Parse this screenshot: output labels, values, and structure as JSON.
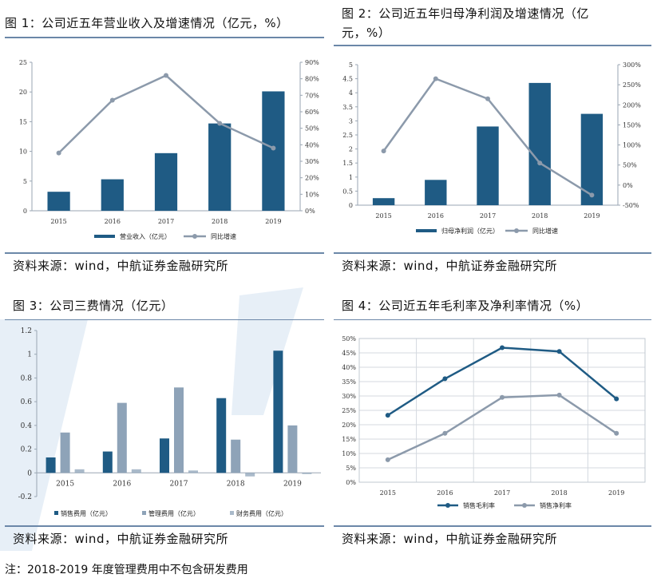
{
  "colors": {
    "bar_dark": "#1f5b84",
    "bar_light": "#8ea3b8",
    "line_grey": "#8c9aab",
    "axis": "#9aa6b3",
    "rule": "#6b87a8"
  },
  "page": {
    "source_text": "资料来源：wind，中航证券金融研究所",
    "note": "注：2018-2019 年度管理费用中不包含研发费用"
  },
  "charts": [
    {
      "title": "图 1：公司近五年营业收入及增速情况（亿元，%）"
    },
    {
      "title_line1": "图 2：公司近五年归母净利润及增速情况（亿",
      "title_line2": "元，%）"
    },
    {
      "title": "图 3：公司三费情况（亿元）"
    },
    {
      "title": "图 4：公司近五年毛利率及净利率情况（%）"
    }
  ],
  "chart_data": [
    {
      "type": "bar",
      "categories": [
        "2015",
        "2016",
        "2017",
        "2018",
        "2019"
      ],
      "series": [
        {
          "name": "营业收入（亿元）",
          "type": "bar",
          "axis": "left",
          "values": [
            3.2,
            5.3,
            9.7,
            14.7,
            20.1
          ]
        },
        {
          "name": "同比增速",
          "type": "line",
          "axis": "right",
          "values": [
            35,
            67,
            82,
            53,
            38
          ]
        }
      ],
      "ylim": [
        0,
        25
      ],
      "y_ticks": [
        "0",
        "5",
        "10",
        "15",
        "20",
        "25"
      ],
      "y2lim": [
        0,
        90
      ],
      "y2_ticks": [
        "0%",
        "10%",
        "20%",
        "30%",
        "40%",
        "50%",
        "60%",
        "70%",
        "80%",
        "90%"
      ],
      "legend": "bottom"
    },
    {
      "type": "bar",
      "categories": [
        "2015",
        "2016",
        "2017",
        "2018",
        "2019"
      ],
      "series": [
        {
          "name": "归母净利润（亿元）",
          "type": "bar",
          "axis": "left",
          "values": [
            0.25,
            0.9,
            2.8,
            4.35,
            3.25
          ]
        },
        {
          "name": "同比增速",
          "type": "line",
          "axis": "right",
          "values": [
            85,
            265,
            215,
            55,
            -25
          ]
        }
      ],
      "ylim": [
        0,
        5
      ],
      "y_ticks": [
        "0",
        "0.5",
        "1",
        "1.5",
        "2",
        "2.5",
        "3",
        "3.5",
        "4",
        "4.5",
        "5"
      ],
      "y2lim": [
        -50,
        300
      ],
      "y2_ticks": [
        "-50%",
        "0%",
        "50%",
        "100%",
        "150%",
        "200%",
        "250%",
        "300%"
      ],
      "legend": "bottom"
    },
    {
      "type": "bar",
      "categories": [
        "2015",
        "2016",
        "2017",
        "2018",
        "2019"
      ],
      "series": [
        {
          "name": "销售费用（亿元）",
          "values": [
            0.13,
            0.18,
            0.29,
            0.63,
            1.03
          ]
        },
        {
          "name": "管理费用（亿元）",
          "values": [
            0.34,
            0.59,
            0.72,
            0.28,
            0.4
          ]
        },
        {
          "name": "财务费用（亿元）",
          "values": [
            0.03,
            0.03,
            0.02,
            -0.03,
            -0.01
          ]
        }
      ],
      "ylim": [
        -0.2,
        1.2
      ],
      "y_ticks": [
        "-0.2",
        "0",
        "0.2",
        "0.4",
        "0.6",
        "0.8",
        "1",
        "1.2"
      ],
      "legend": "bottom"
    },
    {
      "type": "line",
      "categories": [
        "2015",
        "2016",
        "2017",
        "2018",
        "2019"
      ],
      "series": [
        {
          "name": "销售毛利率",
          "values": [
            23.3,
            36,
            46.8,
            45.5,
            29
          ]
        },
        {
          "name": "销售净利率",
          "values": [
            7.8,
            17,
            29.5,
            30.3,
            17
          ]
        }
      ],
      "ylim": [
        0,
        50
      ],
      "y_ticks": [
        "0%",
        "5%",
        "10%",
        "15%",
        "20%",
        "25%",
        "30%",
        "35%",
        "40%",
        "45%",
        "50%"
      ],
      "grid": true,
      "legend": "bottom"
    }
  ]
}
